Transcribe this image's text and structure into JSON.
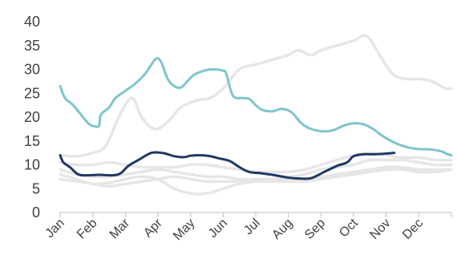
{
  "chart_data": {
    "type": "line",
    "title": "",
    "xlabel": "",
    "ylabel": "",
    "ylim": [
      0,
      40
    ],
    "yticks": [
      0,
      5,
      10,
      15,
      20,
      25,
      30,
      35,
      40
    ],
    "categories": [
      "Jan",
      "Feb",
      "Mar",
      "Apr",
      "May",
      "Jun",
      "Jul",
      "Aug",
      "Sep",
      "Oct",
      "Nov",
      "Dec"
    ],
    "x_range": [
      0,
      12
    ],
    "grid": false,
    "legend": "none",
    "series": [
      {
        "color": "#e6e6e6",
        "points": [
          [
            0,
            12
          ],
          [
            0.5,
            11.8
          ],
          [
            1,
            12.5
          ],
          [
            1.4,
            14
          ],
          [
            1.8,
            20
          ],
          [
            2.2,
            24
          ],
          [
            2.5,
            20
          ],
          [
            2.9,
            17.5
          ],
          [
            3.3,
            19
          ],
          [
            3.7,
            22
          ],
          [
            4.2,
            23.5
          ],
          [
            4.6,
            24
          ],
          [
            5,
            26
          ],
          [
            5.5,
            30
          ],
          [
            6,
            31
          ],
          [
            6.5,
            32
          ],
          [
            7,
            33
          ],
          [
            7.3,
            34
          ],
          [
            7.7,
            33
          ],
          [
            8,
            34
          ],
          [
            8.5,
            35
          ],
          [
            9,
            36
          ],
          [
            9.4,
            37
          ],
          [
            9.8,
            33
          ],
          [
            10.2,
            29
          ],
          [
            10.6,
            28
          ],
          [
            11,
            28
          ],
          [
            11.4,
            27.5
          ],
          [
            11.8,
            26
          ],
          [
            12,
            26
          ]
        ]
      },
      {
        "color": "#e6e6e6",
        "points": [
          [
            0,
            8
          ],
          [
            0.5,
            7
          ],
          [
            1,
            6
          ],
          [
            1.5,
            6.2
          ],
          [
            2,
            7
          ],
          [
            2.5,
            7.5
          ],
          [
            3,
            7
          ],
          [
            3.5,
            5
          ],
          [
            4,
            4
          ],
          [
            4.5,
            4
          ],
          [
            5,
            5
          ],
          [
            5.5,
            6
          ],
          [
            6,
            6.5
          ],
          [
            6.5,
            7
          ],
          [
            7,
            7.5
          ],
          [
            7.5,
            8
          ],
          [
            8,
            9
          ],
          [
            8.5,
            9.5
          ],
          [
            9,
            10
          ],
          [
            9.5,
            11
          ],
          [
            10,
            11
          ],
          [
            10.5,
            11
          ],
          [
            11,
            10.5
          ],
          [
            11.5,
            10
          ],
          [
            12,
            10
          ]
        ]
      },
      {
        "color": "#e6e6e6",
        "points": [
          [
            0,
            9
          ],
          [
            0.5,
            8
          ],
          [
            1,
            7.5
          ],
          [
            1.5,
            7.5
          ],
          [
            2,
            8
          ],
          [
            2.5,
            8.5
          ],
          [
            3,
            9
          ],
          [
            3.5,
            8.5
          ],
          [
            4,
            8
          ],
          [
            4.5,
            7.5
          ],
          [
            5,
            7.5
          ],
          [
            5.5,
            7
          ],
          [
            6,
            7
          ],
          [
            6.5,
            7
          ],
          [
            7,
            7
          ],
          [
            7.5,
            7
          ],
          [
            8,
            7.5
          ],
          [
            8.5,
            8
          ],
          [
            9,
            8.5
          ],
          [
            9.5,
            9
          ],
          [
            10,
            9.5
          ],
          [
            10.5,
            9.5
          ],
          [
            11,
            9
          ],
          [
            11.5,
            9
          ],
          [
            12,
            9
          ]
        ]
      },
      {
        "color": "#e6e6e6",
        "points": [
          [
            0,
            10.5
          ],
          [
            0.5,
            10
          ],
          [
            1,
            10
          ],
          [
            1.5,
            10.5
          ],
          [
            2,
            10
          ],
          [
            2.5,
            9.5
          ],
          [
            3,
            9.5
          ],
          [
            3.5,
            9.5
          ],
          [
            4,
            10
          ],
          [
            4.5,
            10
          ],
          [
            5,
            9.5
          ],
          [
            5.5,
            9
          ],
          [
            6,
            8.5
          ],
          [
            6.5,
            8.5
          ],
          [
            7,
            8.5
          ],
          [
            7.5,
            9
          ],
          [
            8,
            10
          ],
          [
            8.5,
            11
          ],
          [
            9,
            12
          ],
          [
            9.5,
            12.5
          ],
          [
            10,
            12
          ],
          [
            10.5,
            11.5
          ],
          [
            11,
            11.5
          ],
          [
            11.5,
            11
          ],
          [
            12,
            11
          ]
        ]
      },
      {
        "color": "#e6e6e6",
        "points": [
          [
            0,
            7
          ],
          [
            0.5,
            6.5
          ],
          [
            1,
            6
          ],
          [
            1.5,
            5.5
          ],
          [
            2,
            6
          ],
          [
            2.5,
            6.5
          ],
          [
            3,
            7
          ],
          [
            3.5,
            7.5
          ],
          [
            4,
            7
          ],
          [
            4.5,
            6.5
          ],
          [
            5,
            6.5
          ],
          [
            5.5,
            6.5
          ],
          [
            6,
            6.5
          ],
          [
            6.5,
            6.5
          ],
          [
            7,
            6.5
          ],
          [
            7.5,
            6.5
          ],
          [
            8,
            7
          ],
          [
            8.5,
            7.5
          ],
          [
            9,
            8
          ],
          [
            9.5,
            8.5
          ],
          [
            10,
            9
          ],
          [
            10.5,
            9
          ],
          [
            11,
            8.5
          ],
          [
            11.5,
            8.5
          ],
          [
            12,
            9
          ]
        ]
      },
      {
        "color": "#7ec4cf",
        "points": [
          [
            0,
            26.5
          ],
          [
            0.15,
            24
          ],
          [
            0.4,
            22.5
          ],
          [
            0.7,
            20
          ],
          [
            0.9,
            18.5
          ],
          [
            1.1,
            18
          ],
          [
            1.2,
            18.3
          ],
          [
            1.25,
            20.5
          ],
          [
            1.5,
            22
          ],
          [
            1.7,
            24
          ],
          [
            2,
            25.5
          ],
          [
            2.3,
            27
          ],
          [
            2.6,
            29
          ],
          [
            2.8,
            31
          ],
          [
            2.95,
            32.3
          ],
          [
            3.1,
            31.5
          ],
          [
            3.3,
            28
          ],
          [
            3.5,
            26.5
          ],
          [
            3.7,
            26.2
          ],
          [
            3.9,
            27.5
          ],
          [
            4.1,
            28.8
          ],
          [
            4.4,
            29.7
          ],
          [
            4.7,
            30
          ],
          [
            5,
            29.7
          ],
          [
            5.1,
            29
          ],
          [
            5.3,
            24.5
          ],
          [
            5.6,
            24
          ],
          [
            5.8,
            23.8
          ],
          [
            6,
            22.5
          ],
          [
            6.2,
            21.5
          ],
          [
            6.5,
            21.2
          ],
          [
            6.8,
            21.7
          ],
          [
            7.1,
            21
          ],
          [
            7.4,
            18.7
          ],
          [
            7.7,
            17.5
          ],
          [
            8.1,
            17
          ],
          [
            8.4,
            17.3
          ],
          [
            8.7,
            18.2
          ],
          [
            9,
            18.7
          ],
          [
            9.3,
            18.5
          ],
          [
            9.6,
            17.5
          ],
          [
            9.9,
            16
          ],
          [
            10.3,
            14.5
          ],
          [
            10.7,
            13.6
          ],
          [
            11,
            13.3
          ],
          [
            11.4,
            13.2
          ],
          [
            11.7,
            12.8
          ],
          [
            11.85,
            12.3
          ],
          [
            12,
            12
          ]
        ]
      },
      {
        "color": "#1f3864",
        "points": [
          [
            0,
            12
          ],
          [
            0.1,
            10.5
          ],
          [
            0.3,
            9.5
          ],
          [
            0.55,
            8
          ],
          [
            0.8,
            7.8
          ],
          [
            1.2,
            7.9
          ],
          [
            1.6,
            7.8
          ],
          [
            1.85,
            8.2
          ],
          [
            2.1,
            9.8
          ],
          [
            2.4,
            11
          ],
          [
            2.7,
            12.2
          ],
          [
            2.9,
            12.6
          ],
          [
            3.2,
            12.4
          ],
          [
            3.5,
            11.8
          ],
          [
            3.8,
            11.6
          ],
          [
            4,
            11.9
          ],
          [
            4.3,
            12
          ],
          [
            4.6,
            11.8
          ],
          [
            4.9,
            11.3
          ],
          [
            5.2,
            10.8
          ],
          [
            5.5,
            9.5
          ],
          [
            5.8,
            8.5
          ],
          [
            6.2,
            8.2
          ],
          [
            6.6,
            7.8
          ],
          [
            7,
            7.3
          ],
          [
            7.4,
            7.1
          ],
          [
            7.7,
            7.2
          ],
          [
            8.1,
            8.5
          ],
          [
            8.5,
            9.8
          ],
          [
            8.8,
            10.5
          ],
          [
            9,
            11.8
          ],
          [
            9.3,
            12.2
          ],
          [
            9.6,
            12.2
          ],
          [
            9.9,
            12.3
          ],
          [
            10.1,
            12.4
          ],
          [
            10.25,
            12.5
          ]
        ]
      }
    ]
  }
}
